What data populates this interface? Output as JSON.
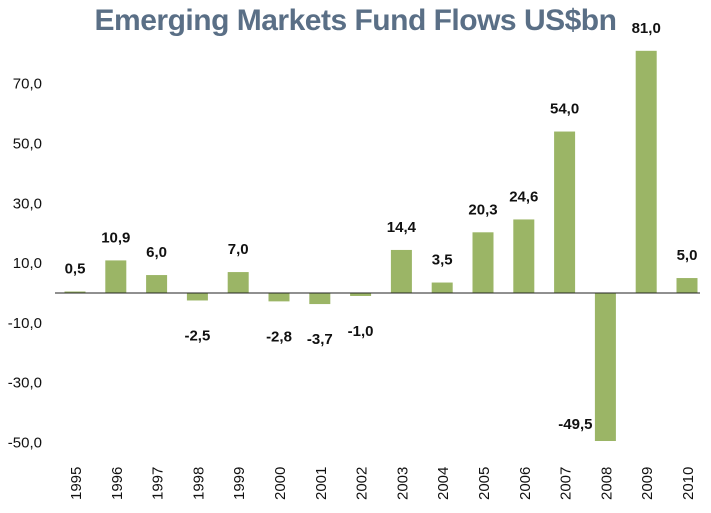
{
  "chart_data": {
    "type": "bar",
    "title": "Emerging Markets Fund Flows US$bn",
    "categories": [
      "1995",
      "1996",
      "1997",
      "1998",
      "1999",
      "2000",
      "2001",
      "2002",
      "2003",
      "2004",
      "2005",
      "2006",
      "2007",
      "2008",
      "2009",
      "2010"
    ],
    "values": [
      0.5,
      10.9,
      6.0,
      -2.5,
      7.0,
      -2.8,
      -3.7,
      -1.0,
      14.4,
      3.5,
      20.3,
      24.6,
      54.0,
      -49.5,
      81.0,
      5.0
    ],
    "data_labels": [
      "0,5",
      "10,9",
      "6,0",
      "-2,5",
      "7,0",
      "-2,8",
      "-3,7",
      "-1,0",
      "14,4",
      "3,5",
      "20,3",
      "24,6",
      "54,0",
      "-49,5",
      "81,0",
      "5,0"
    ],
    "y_ticks": [
      -50,
      -30,
      -10,
      10,
      30,
      50,
      70
    ],
    "y_tick_labels": [
      "-50,0",
      "-30,0",
      "-10,0",
      "10,0",
      "30,0",
      "50,0",
      "70,0"
    ],
    "ylim": [
      -50,
      81
    ],
    "bar_color": "#9bb566",
    "grid": false,
    "legend": "none"
  }
}
